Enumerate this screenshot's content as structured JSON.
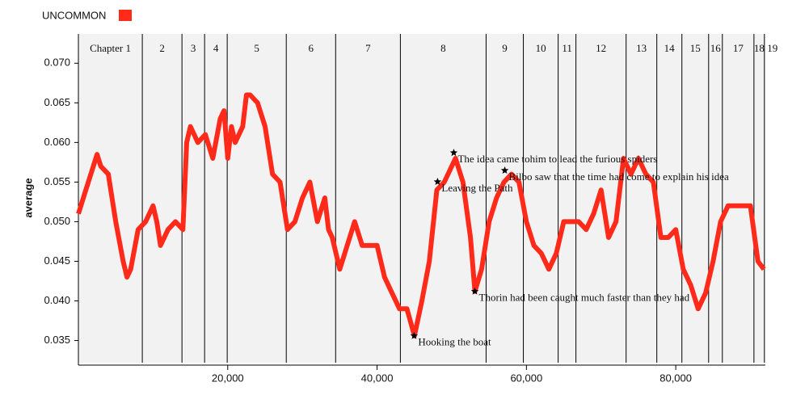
{
  "chart_data": {
    "type": "line",
    "ylabel": "average",
    "xlim": [
      0,
      92000
    ],
    "ylim": [
      0.0322,
      0.0737
    ],
    "xticks": [
      {
        "value": 20000,
        "label": "20,000"
      },
      {
        "value": 40000,
        "label": "40,000"
      },
      {
        "value": 60000,
        "label": "60,000"
      },
      {
        "value": 80000,
        "label": "80,000"
      }
    ],
    "yticks": [
      0.035,
      {
        "value": 0.04,
        "label": "0.040"
      },
      0.045,
      {
        "value": 0.05,
        "label": "0.050"
      },
      0.055,
      {
        "value": 0.06,
        "label": "0.060"
      },
      0.065,
      {
        "value": 0.07,
        "label": "0.070"
      }
    ],
    "series": [
      {
        "name": "UNCOMMON",
        "color": "#ff2a1a",
        "x": [
          0,
          1000,
          2000,
          2500,
          3000,
          4000,
          5000,
          6000,
          6500,
          7000,
          8000,
          9000,
          10000,
          10500,
          11000,
          12000,
          13000,
          14000,
          14500,
          15000,
          16000,
          17000,
          18000,
          19000,
          19500,
          20000,
          20500,
          21000,
          22000,
          22500,
          23000,
          24000,
          25000,
          26000,
          27000,
          28000,
          29000,
          30000,
          31000,
          32000,
          33000,
          33500,
          34000,
          35000,
          36000,
          37000,
          38000,
          39000,
          40000,
          41000,
          42000,
          43000,
          44000,
          45000,
          46000,
          47000,
          48000,
          49000,
          50500,
          51500,
          52500,
          53100,
          54000,
          55000,
          56000,
          57000,
          58000,
          59000,
          60000,
          61000,
          62000,
          63000,
          64000,
          65000,
          66000,
          67000,
          68000,
          69000,
          70000,
          71000,
          72000,
          73000,
          74000,
          75000,
          76000,
          77000,
          78000,
          79000,
          80000,
          81000,
          82000,
          83000,
          84000,
          85000,
          86000,
          87000,
          88000,
          89000,
          90000,
          91000,
          91800
        ],
        "values": [
          0.051,
          0.054,
          0.057,
          0.0585,
          0.057,
          0.056,
          0.05,
          0.045,
          0.043,
          0.044,
          0.049,
          0.05,
          0.052,
          0.05,
          0.047,
          0.049,
          0.05,
          0.049,
          0.06,
          0.062,
          0.06,
          0.061,
          0.058,
          0.063,
          0.064,
          0.058,
          0.062,
          0.06,
          0.062,
          0.066,
          0.066,
          0.065,
          0.062,
          0.056,
          0.055,
          0.049,
          0.05,
          0.053,
          0.055,
          0.05,
          0.053,
          0.049,
          0.048,
          0.044,
          0.047,
          0.05,
          0.047,
          0.047,
          0.047,
          0.043,
          0.041,
          0.039,
          0.039,
          0.0356,
          0.04,
          0.045,
          0.054,
          0.055,
          0.058,
          0.055,
          0.048,
          0.0412,
          0.044,
          0.05,
          0.053,
          0.055,
          0.056,
          0.055,
          0.05,
          0.047,
          0.046,
          0.044,
          0.046,
          0.05,
          0.05,
          0.05,
          0.049,
          0.051,
          0.054,
          0.048,
          0.05,
          0.058,
          0.056,
          0.058,
          0.056,
          0.055,
          0.048,
          0.048,
          0.049,
          0.044,
          0.042,
          0.039,
          0.041,
          0.045,
          0.05,
          0.052,
          0.052,
          0.052,
          0.052,
          0.045,
          0.044
        ]
      }
    ],
    "chapters": [
      {
        "label": "Chapter 1",
        "start": 0
      },
      {
        "label": "2",
        "start": 8560
      },
      {
        "label": "3",
        "start": 13870
      },
      {
        "label": "4",
        "start": 16900
      },
      {
        "label": "5",
        "start": 19930
      },
      {
        "label": "6",
        "start": 27840
      },
      {
        "label": "7",
        "start": 34450
      },
      {
        "label": "8",
        "start": 43120
      },
      {
        "label": "9",
        "start": 54600
      },
      {
        "label": "10",
        "start": 59590
      },
      {
        "label": "11",
        "start": 64250
      },
      {
        "label": "12",
        "start": 66630
      },
      {
        "label": "13",
        "start": 73350
      },
      {
        "label": "14",
        "start": 77460
      },
      {
        "label": "15",
        "start": 80820
      },
      {
        "label": "16",
        "start": 84400
      },
      {
        "label": "17",
        "start": 86240
      },
      {
        "label": "18",
        "start": 90470
      },
      {
        "label": "19",
        "start": 91870
      }
    ],
    "annotations": [
      {
        "text": "Hooking the boat",
        "x": 44960,
        "y": 0.0356
      },
      {
        "text": "Leaving the Path",
        "x": 48100,
        "y": 0.05504
      },
      {
        "text": "The idea came tohim to lead the furious spiders",
        "x": 50270,
        "y": 0.0587
      },
      {
        "text": "Bilbo saw that the time had come to explain his idea",
        "x": 57100,
        "y": 0.05647
      },
      {
        "text": "Thorin had been caught much faster than they had",
        "x": 53090,
        "y": 0.04121
      }
    ]
  }
}
